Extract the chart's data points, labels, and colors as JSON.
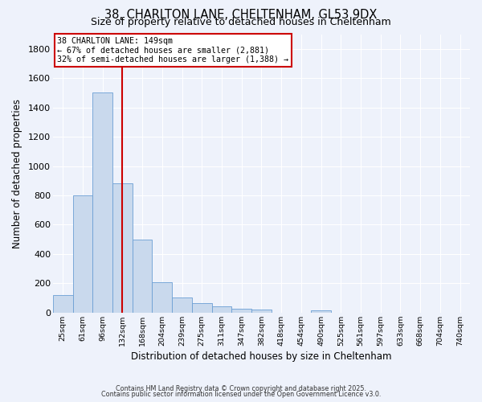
{
  "title_line1": "38, CHARLTON LANE, CHELTENHAM, GL53 9DX",
  "title_line2": "Size of property relative to detached houses in Cheltenham",
  "xlabel": "Distribution of detached houses by size in Cheltenham",
  "ylabel": "Number of detached properties",
  "bar_labels": [
    "25sqm",
    "61sqm",
    "96sqm",
    "132sqm",
    "168sqm",
    "204sqm",
    "239sqm",
    "275sqm",
    "311sqm",
    "347sqm",
    "382sqm",
    "418sqm",
    "454sqm",
    "490sqm",
    "525sqm",
    "561sqm",
    "597sqm",
    "633sqm",
    "668sqm",
    "704sqm",
    "740sqm"
  ],
  "bar_values": [
    120,
    800,
    1500,
    880,
    500,
    210,
    105,
    65,
    45,
    25,
    20,
    0,
    0,
    15,
    0,
    0,
    0,
    0,
    0,
    0,
    0
  ],
  "bar_color": "#c9d9ed",
  "bar_edge_color": "#6b9fd4",
  "ylim": [
    0,
    1900
  ],
  "yticks": [
    0,
    200,
    400,
    600,
    800,
    1000,
    1200,
    1400,
    1600,
    1800
  ],
  "vline_color": "#cc0000",
  "annotation_title": "38 CHARLTON LANE: 149sqm",
  "annotation_line1": "← 67% of detached houses are smaller (2,881)",
  "annotation_line2": "32% of semi-detached houses are larger (1,388) →",
  "annotation_box_facecolor": "#ffffff",
  "annotation_box_edgecolor": "#cc0000",
  "footer_line1": "Contains HM Land Registry data © Crown copyright and database right 2025.",
  "footer_line2": "Contains public sector information licensed under the Open Government Licence v3.0.",
  "background_color": "#eef2fb",
  "grid_color": "#ffffff",
  "axis_bg_color": "#eef2fb"
}
